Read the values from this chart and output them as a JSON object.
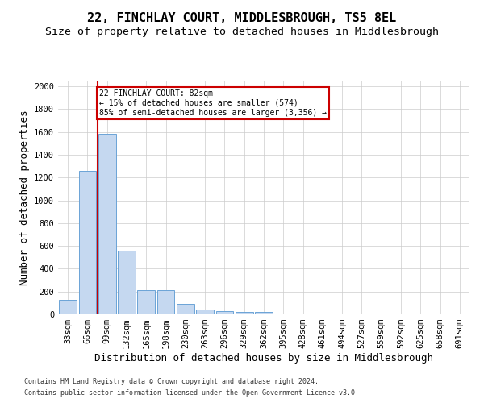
{
  "title": "22, FINCHLAY COURT, MIDDLESBROUGH, TS5 8EL",
  "subtitle": "Size of property relative to detached houses in Middlesbrough",
  "xlabel": "Distribution of detached houses by size in Middlesbrough",
  "ylabel": "Number of detached properties",
  "footer_line1": "Contains HM Land Registry data © Crown copyright and database right 2024.",
  "footer_line2": "Contains public sector information licensed under the Open Government Licence v3.0.",
  "categories": [
    "33sqm",
    "66sqm",
    "99sqm",
    "132sqm",
    "165sqm",
    "198sqm",
    "230sqm",
    "263sqm",
    "296sqm",
    "329sqm",
    "362sqm",
    "395sqm",
    "428sqm",
    "461sqm",
    "494sqm",
    "527sqm",
    "559sqm",
    "592sqm",
    "625sqm",
    "658sqm",
    "691sqm"
  ],
  "values": [
    130,
    1260,
    1580,
    560,
    215,
    215,
    90,
    45,
    28,
    18,
    18,
    0,
    0,
    0,
    0,
    0,
    0,
    0,
    0,
    0,
    0
  ],
  "bar_color": "#c5d8f0",
  "bar_edge_color": "#6ba3d6",
  "red_line_x": 1.5,
  "red_line_color": "#cc0000",
  "annotation_text": "22 FINCHLAY COURT: 82sqm\n← 15% of detached houses are smaller (574)\n85% of semi-detached houses are larger (3,356) →",
  "annotation_box_color": "#ffffff",
  "annotation_box_edge": "#cc0000",
  "ylim": [
    0,
    2050
  ],
  "yticks": [
    0,
    200,
    400,
    600,
    800,
    1000,
    1200,
    1400,
    1600,
    1800,
    2000
  ],
  "background_color": "#ffffff",
  "grid_color": "#cccccc",
  "title_fontsize": 11,
  "subtitle_fontsize": 9.5,
  "axis_label_fontsize": 9,
  "tick_fontsize": 7.5,
  "footer_fontsize": 6.0
}
